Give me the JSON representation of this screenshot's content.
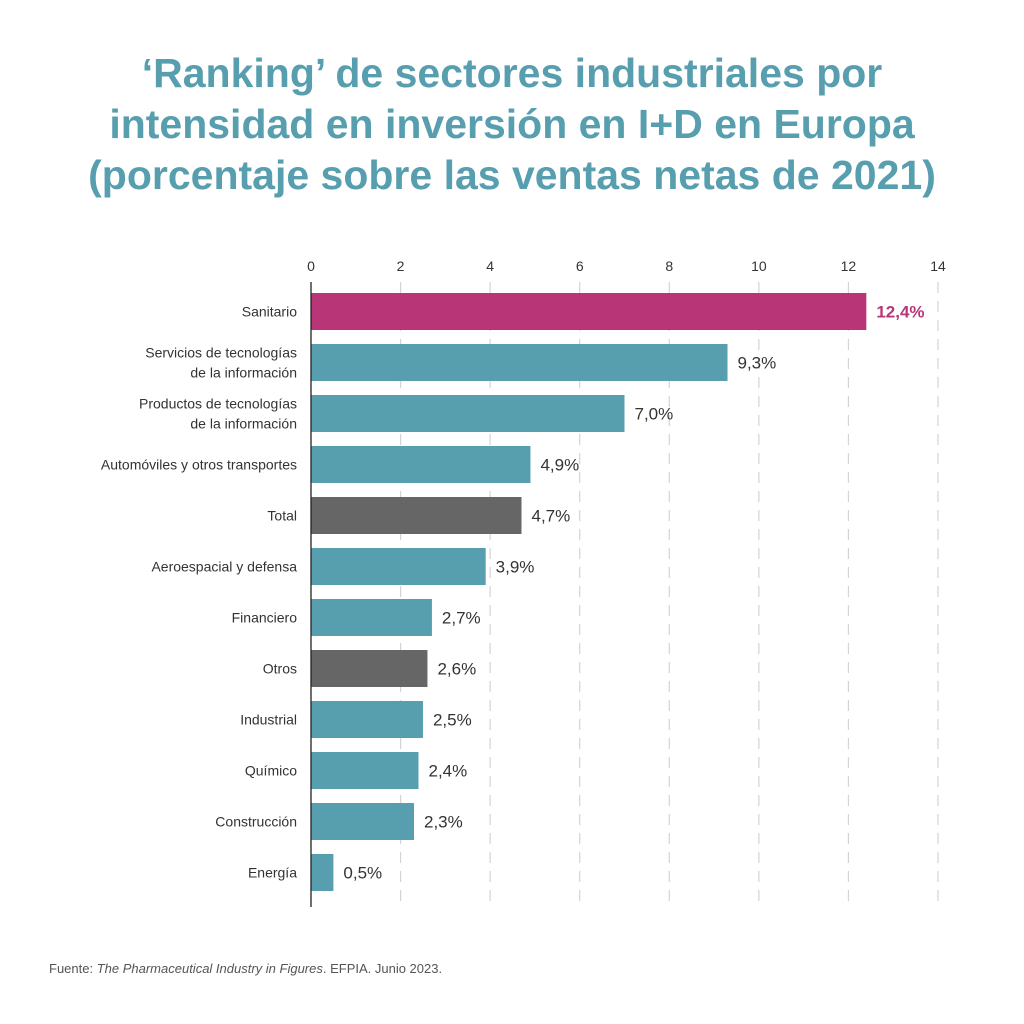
{
  "title_lines": [
    "‘Ranking’ de sectores industriales por",
    "intensidad en inversión en I+D en Europa",
    "(porcentaje sobre las ventas netas de 2021)"
  ],
  "footer": {
    "prefix": "Fuente: ",
    "source_title": "The Pharmaceutical Industry in Figures",
    "suffix": ". EFPIA. Junio 2023."
  },
  "colors": {
    "title": "#579eaf",
    "bar_default": "#579eaf",
    "bar_highlight": "#b83677",
    "bar_aggregate": "#666666",
    "label_highlight": "#b83677"
  },
  "chart_data": {
    "type": "bar",
    "orientation": "horizontal",
    "xlim": [
      0,
      14
    ],
    "x_ticks": [
      "0",
      "2",
      "4",
      "6",
      "8",
      "10",
      "12",
      "14"
    ],
    "x_tick_values": [
      0,
      2,
      4,
      6,
      8,
      10,
      12,
      14
    ],
    "grid": "vertical dashed",
    "categories": [
      [
        "Sanitario"
      ],
      [
        "Servicios de tecnologías",
        "de la información"
      ],
      [
        "Productos de tecnologías",
        "de la información"
      ],
      [
        "Automóviles y otros transportes"
      ],
      [
        "Total"
      ],
      [
        "Aeroespacial y defensa"
      ],
      [
        "Financiero"
      ],
      [
        "Otros"
      ],
      [
        "Industrial"
      ],
      [
        "Químico"
      ],
      [
        "Construcción"
      ],
      [
        "Energía"
      ]
    ],
    "values": [
      12.4,
      9.3,
      7.0,
      4.9,
      4.7,
      3.9,
      2.7,
      2.6,
      2.5,
      2.4,
      2.3,
      0.5
    ],
    "value_labels": [
      "12,4%",
      "9,3%",
      "7,0%",
      "4,9%",
      "4,7%",
      "3,9%",
      "2,7%",
      "2,6%",
      "2,5%",
      "2,4%",
      "2,3%",
      "0,5%"
    ],
    "bar_styles": [
      "highlight",
      "default",
      "default",
      "default",
      "aggregate",
      "default",
      "default",
      "aggregate",
      "default",
      "default",
      "default",
      "default"
    ]
  }
}
